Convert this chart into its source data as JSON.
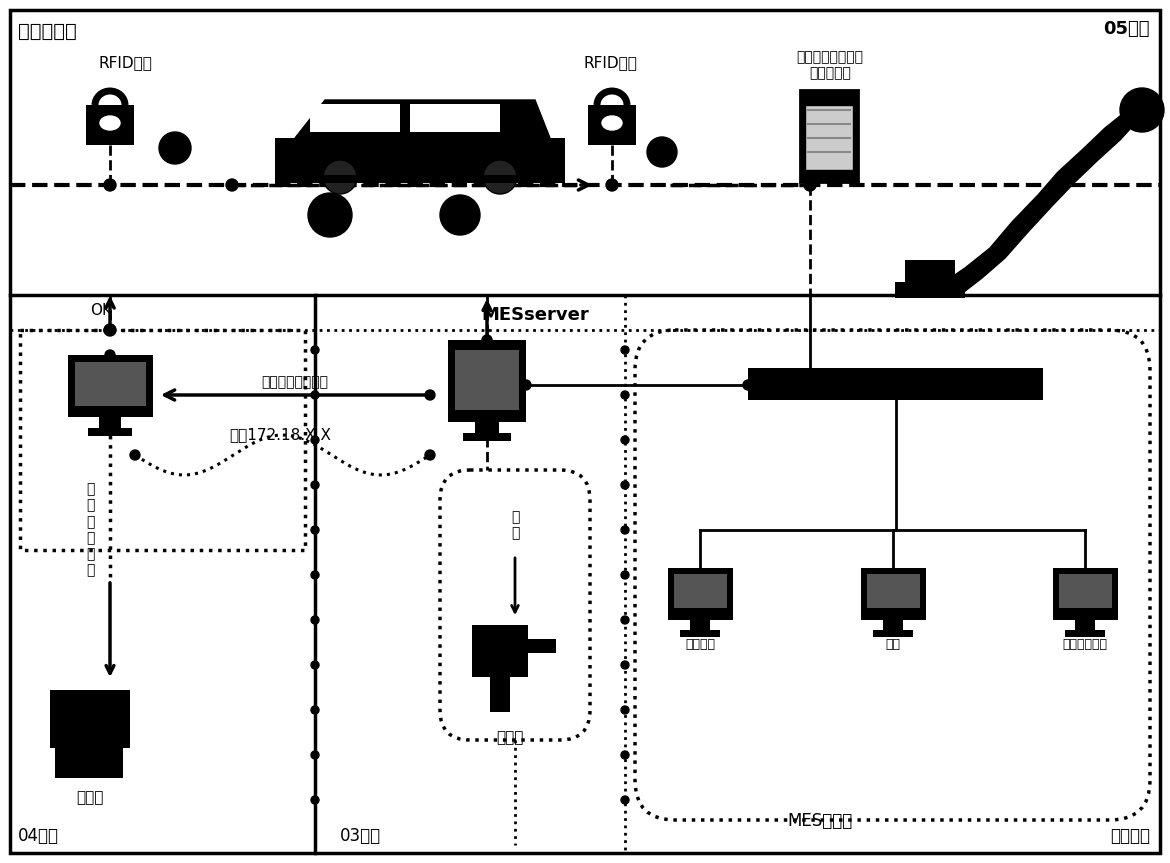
{
  "bg_color": "#ffffff",
  "title_top_left": "车身总拼线",
  "title_top_right": "05岗位",
  "title_bot_left": "04岗位",
  "title_bot_mid": "03岗位",
  "title_bot_right": "办公区域",
  "label_rfid_write": "RFID写入",
  "label_rfid_read": "RFID读出",
  "label_robot": "调用车型对应程序\n机器人作业",
  "label_mes_server": "MESserver",
  "label_output_card": "输出卡上对应车型",
  "label_factory_ip": "厂内172.18.X.X",
  "label_scanner": "扫描枪",
  "label_scan_down": "扫\n下",
  "label_ok": "OK",
  "label_output_manual": "输\n出\n人\n工\n判\n断",
  "label_operation_box": "操作盒",
  "label_mes_func": "MES端功能",
  "label_signal_maint": "信号维护",
  "label_recheck": "重检",
  "label_product_data": "产品平台数据"
}
